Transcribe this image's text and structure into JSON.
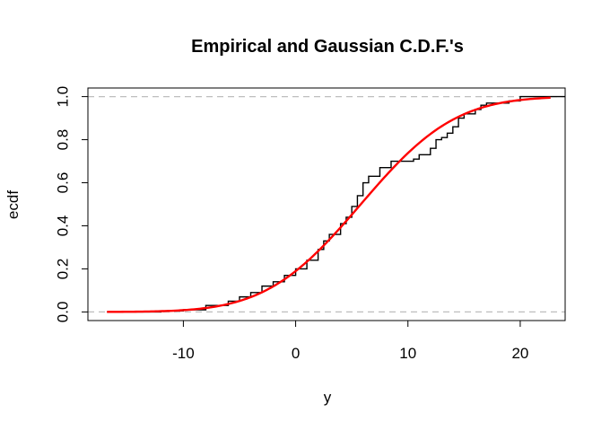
{
  "chart_data": {
    "type": "line",
    "title": "Empirical and Gaussian C.D.F.'s",
    "xlabel": "y",
    "ylabel": "ecdf",
    "xlim": [
      -18.5,
      24
    ],
    "ylim": [
      -0.04,
      1.04
    ],
    "x_ticks": [
      -10,
      0,
      10,
      20
    ],
    "y_ticks": [
      0.0,
      0.2,
      0.4,
      0.6,
      0.8,
      1.0
    ],
    "y_tick_labels": [
      "0.0",
      "0.2",
      "0.4",
      "0.6",
      "0.8",
      "1.0"
    ],
    "reference_lines": [
      0,
      1
    ],
    "series": [
      {
        "kind": "step",
        "color": "#000000",
        "points": [
          [
            -16.8,
            0.0
          ],
          [
            -12,
            0.005
          ],
          [
            -10,
            0.01
          ],
          [
            -8,
            0.03
          ],
          [
            -6,
            0.05
          ],
          [
            -5,
            0.07
          ],
          [
            -4,
            0.09
          ],
          [
            -3,
            0.12
          ],
          [
            -2,
            0.14
          ],
          [
            -1,
            0.17
          ],
          [
            0,
            0.2
          ],
          [
            1,
            0.24
          ],
          [
            2,
            0.29
          ],
          [
            2.5,
            0.33
          ],
          [
            3,
            0.36
          ],
          [
            4,
            0.41
          ],
          [
            4.5,
            0.44
          ],
          [
            5,
            0.49
          ],
          [
            5.5,
            0.54
          ],
          [
            6,
            0.6
          ],
          [
            6.5,
            0.63
          ],
          [
            7.5,
            0.67
          ],
          [
            8.5,
            0.7
          ],
          [
            9.5,
            0.7
          ],
          [
            10.5,
            0.71
          ],
          [
            11,
            0.73
          ],
          [
            12,
            0.76
          ],
          [
            12.5,
            0.8
          ],
          [
            13,
            0.81
          ],
          [
            13.5,
            0.83
          ],
          [
            14,
            0.86
          ],
          [
            14.5,
            0.9
          ],
          [
            15,
            0.92
          ],
          [
            16,
            0.94
          ],
          [
            16.5,
            0.96
          ],
          [
            17,
            0.97
          ],
          [
            19,
            0.98
          ],
          [
            20,
            1.0
          ],
          [
            24,
            1.0
          ]
        ]
      },
      {
        "kind": "normal-cdf",
        "color": "#ff0000",
        "mean": 5.8,
        "sd": 6.6,
        "x_range": [
          -16.8,
          22.7
        ]
      }
    ]
  }
}
